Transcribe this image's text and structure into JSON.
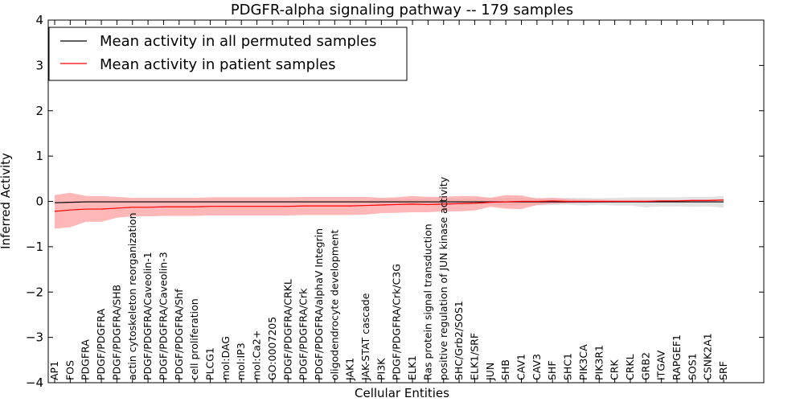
{
  "chart_data": {
    "type": "line",
    "title": "PDGFR-alpha signaling pathway -- 179 samples",
    "xlabel": "Cellular Entities",
    "ylabel": "Inferred Activity",
    "ylim": [
      -4,
      4
    ],
    "yticks": [
      4,
      3,
      2,
      1,
      0,
      -1,
      -2,
      -3,
      -4
    ],
    "ytick_labels": [
      "4",
      "3",
      "2",
      "1",
      "0",
      "−1",
      "−2",
      "−3",
      "−4"
    ],
    "categories": [
      "AP1",
      "FOS",
      "PDGFRA",
      "PDGF/PDGFRA",
      "PDGF/PDGFRA/SHB",
      "actin cytoskeleton reorganization",
      "PDGF/PDGFRA/Caveolin-1",
      "PDGF/PDGFRA/Caveolin-3",
      "PDGF/PDGFRA/Shf",
      "cell proliferation",
      "PLCG1",
      "mol:DAG",
      "mol:IP3",
      "mol:Ca2+",
      "GO:0007205",
      "PDGF/PDGFRA/CRKL",
      "PDGF/PDGFRA/Crk",
      "PDGF/PDGFRA/alphaV Integrin",
      "oligodendrocyte development",
      "JAK1",
      "JAK-STAT cascade",
      "PI3K",
      "PDGF/PDGFRA/Crk/C3G",
      "ELK1",
      "Ras protein signal transduction",
      "positive regulation of JUN kinase activity",
      "SHC/Grb2/SOS1",
      "ELK1/SRF",
      "JUN",
      "SHB",
      "CAV1",
      "CAV3",
      "SHF",
      "SHC1",
      "PIK3CA",
      "PIK3R1",
      "CRK",
      "CRKL",
      "GRB2",
      "ITGAV",
      "RAPGEF1",
      "SOS1",
      "CSNK2A1",
      "SRF"
    ],
    "legend_position": "top-left",
    "legend": [
      "Mean activity in all permuted samples",
      "Mean activity in patient samples"
    ],
    "series": [
      {
        "name": "Mean activity in all permuted samples",
        "color": "#000000",
        "values": [
          -0.03,
          -0.02,
          -0.01,
          -0.01,
          -0.01,
          -0.01,
          -0.01,
          -0.01,
          -0.01,
          -0.01,
          -0.01,
          -0.01,
          -0.01,
          -0.01,
          -0.01,
          -0.01,
          -0.01,
          -0.01,
          -0.01,
          -0.01,
          -0.01,
          -0.01,
          -0.01,
          -0.01,
          -0.01,
          -0.01,
          -0.01,
          -0.01,
          -0.01,
          -0.01,
          -0.01,
          -0.01,
          -0.01,
          -0.01,
          -0.01,
          -0.01,
          -0.01,
          -0.01,
          -0.01,
          -0.01,
          -0.01,
          -0.01,
          -0.01,
          -0.01
        ],
        "lower": [
          -0.04,
          -0.03,
          -0.02,
          -0.02,
          -0.02,
          -0.02,
          -0.02,
          -0.02,
          -0.02,
          -0.02,
          -0.02,
          -0.02,
          -0.02,
          -0.02,
          -0.02,
          -0.02,
          -0.02,
          -0.02,
          -0.02,
          -0.02,
          -0.02,
          -0.07,
          -0.07,
          -0.05,
          -0.08,
          -0.08,
          -0.07,
          -0.06,
          -0.08,
          -0.09,
          -0.09,
          -0.09,
          -0.08,
          -0.07,
          -0.09,
          -0.07,
          -0.09,
          -0.09,
          -0.13,
          -0.11,
          -0.11,
          -0.12,
          -0.11,
          -0.14
        ],
        "upper": [
          -0.01,
          0.0,
          0.01,
          0.01,
          0.01,
          0.01,
          0.01,
          0.01,
          0.01,
          0.01,
          0.01,
          0.01,
          0.01,
          0.01,
          0.01,
          0.01,
          0.01,
          0.01,
          0.01,
          0.01,
          0.01,
          0.06,
          0.06,
          0.05,
          0.07,
          0.06,
          0.06,
          0.07,
          0.08,
          0.08,
          0.08,
          0.08,
          0.07,
          0.08,
          0.08,
          0.07,
          0.08,
          0.09,
          0.09,
          0.09,
          0.09,
          0.1,
          0.1,
          0.12
        ]
      },
      {
        "name": "Mean activity in patient samples",
        "color": "#ff0000",
        "fill": "#ff9999",
        "values": [
          -0.22,
          -0.19,
          -0.17,
          -0.17,
          -0.15,
          -0.13,
          -0.13,
          -0.12,
          -0.12,
          -0.12,
          -0.11,
          -0.11,
          -0.11,
          -0.11,
          -0.11,
          -0.11,
          -0.1,
          -0.1,
          -0.1,
          -0.1,
          -0.09,
          -0.08,
          -0.07,
          -0.06,
          -0.07,
          -0.06,
          -0.05,
          -0.04,
          -0.02,
          -0.01,
          0.0,
          0.0,
          0.01,
          0.0,
          0.0,
          0.0,
          0.0,
          0.0,
          0.0,
          0.01,
          0.01,
          0.02,
          0.02,
          0.03
        ],
        "lower": [
          -0.6,
          -0.57,
          -0.45,
          -0.45,
          -0.36,
          -0.33,
          -0.33,
          -0.32,
          -0.32,
          -0.32,
          -0.31,
          -0.31,
          -0.31,
          -0.31,
          -0.31,
          -0.31,
          -0.3,
          -0.3,
          -0.3,
          -0.3,
          -0.29,
          -0.26,
          -0.25,
          -0.24,
          -0.24,
          -0.22,
          -0.22,
          -0.2,
          -0.12,
          -0.16,
          -0.17,
          -0.08,
          -0.05,
          -0.04,
          -0.03,
          -0.03,
          -0.02,
          -0.02,
          -0.02,
          -0.01,
          -0.01,
          0.0,
          0.0,
          0.01
        ],
        "upper": [
          0.14,
          0.19,
          0.12,
          0.12,
          0.1,
          0.08,
          0.08,
          0.08,
          0.08,
          0.08,
          0.09,
          0.09,
          0.09,
          0.09,
          0.09,
          0.09,
          0.1,
          0.1,
          0.1,
          0.1,
          0.1,
          0.08,
          0.09,
          0.12,
          0.1,
          0.1,
          0.12,
          0.12,
          0.08,
          0.14,
          0.13,
          0.06,
          0.08,
          0.05,
          0.04,
          0.04,
          0.03,
          0.03,
          0.03,
          0.03,
          0.03,
          0.04,
          0.04,
          0.05
        ]
      }
    ],
    "permuted_band_color": "#d9d9d9"
  }
}
